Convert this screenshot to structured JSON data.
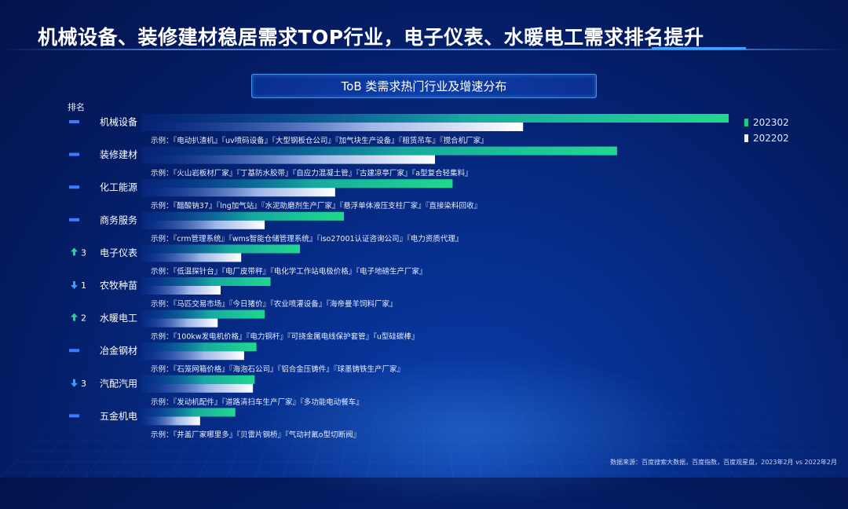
{
  "title": "机械设备、装修建材稳居需求TOP行业，电子仪表、水暖电工需求排名提升",
  "subtitle": "ToB 类需求热门行业及增速分布",
  "rank_header": "排名",
  "legend": [
    {
      "label": "202302",
      "color": "#1fc98a"
    },
    {
      "label": "202202",
      "color": "#e8eef8"
    }
  ],
  "source": "数据来源：百度搜索大数据，百度指数，百度观星盘，2023年2月 vs 2022年2月",
  "colors": {
    "accent": "#1fc98a",
    "bar_old": "#e8eef8",
    "rank_steady": "#3b7cff",
    "rank_up": "#2ecf90",
    "rank_down": "#3b9cff"
  },
  "chart_data": {
    "type": "bar",
    "orientation": "horizontal",
    "categories": [
      "机械设备",
      "装修建材",
      "化工能源",
      "商务服务",
      "电子仪表",
      "农牧种苗",
      "水暖电工",
      "冶金钢材",
      "汽配汽用",
      "五金机电"
    ],
    "series": [
      {
        "name": "202302",
        "values": [
          100,
          81,
          53,
          34.5,
          27,
          22,
          21,
          19.6,
          19.3,
          16
        ]
      },
      {
        "name": "202202",
        "values": [
          65,
          50,
          33,
          21,
          17,
          13.5,
          13,
          17.5,
          19,
          10
        ]
      }
    ],
    "rank_change": [
      {
        "dir": "steady",
        "num": ""
      },
      {
        "dir": "steady",
        "num": ""
      },
      {
        "dir": "steady",
        "num": ""
      },
      {
        "dir": "steady",
        "num": ""
      },
      {
        "dir": "up",
        "num": "3"
      },
      {
        "dir": "down",
        "num": "1"
      },
      {
        "dir": "up",
        "num": "2"
      },
      {
        "dir": "steady",
        "num": ""
      },
      {
        "dir": "down",
        "num": "3"
      },
      {
        "dir": "steady",
        "num": ""
      }
    ],
    "examples": [
      "示例：『电动扒渣机』『uv喷码设备』『大型钢板仓公司』『加气块生产设备』『租赁吊车』『搅合机厂家』",
      "示例：『火山岩板材厂家』『丁基防水胶带』『自应力混凝土管』『古建凉亭厂家』『a型复合轻集料』",
      "示例：『醋酸钠37』『lng加气站』『水泥助磨剂生产厂家』『悬浮单体液压支柱厂家』『直接染料回收』",
      "示例：『crm管理系统』『wms智能仓储管理系统』『iso27001认证咨询公司』『电力资质代理』",
      "示例：『低温探针台』『电厂皮带秤』『电化学工作站电极价格』『电子地磅生产厂家』",
      "示例：『马匹交易市场』『今日猪价』『农业喷灌设备』『海帝曼羊饲料厂家』",
      "示例：『100kw发电机价格』『电力铜杆』『可挠金属电线保护套管』『u型硅碳棒』",
      "示例：『石笼网箱价格』『海泡石公司』『铝合金压铸件』『球墨铸铁生产厂家』",
      "示例：『发动机配件』『道路清扫车生产厂家』『多功能电动餐车』",
      "示例：『井盖厂家哪里多』『贝雷片钢桥』『气动衬氟o型切断阀』"
    ],
    "xlim": [
      0,
      100
    ],
    "legend_position": "top-right"
  }
}
